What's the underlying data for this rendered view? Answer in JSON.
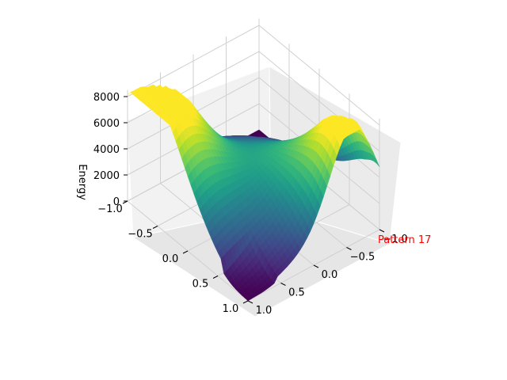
{
  "chart_data": {
    "type": "surface3d",
    "title": "",
    "xlabel": "",
    "ylabel": "",
    "zlabel": "Energy",
    "colormap": "viridis",
    "grid": true,
    "x_range": [
      -1.0,
      1.0
    ],
    "y_range": [
      -1.0,
      1.0
    ],
    "z_range": [
      0,
      8500
    ],
    "x_ticks": [
      "−1.0",
      "−0.5",
      "0.0",
      "0.5",
      "1.0"
    ],
    "y_ticks": [
      "−1.0",
      "−0.5",
      "0.0",
      "0.5",
      "1.0"
    ],
    "z_ticks": [
      "0",
      "2000",
      "4000",
      "6000",
      "8000"
    ],
    "annotation": {
      "text": "Pattern 17",
      "color": "#ff0000"
    },
    "surface_samples": {
      "description_points": [
        {
          "x": 1.0,
          "y": 1.0,
          "z": 0
        },
        {
          "x": -1.0,
          "y": -1.0,
          "z": 0
        },
        {
          "x": 0.0,
          "y": 0.0,
          "z": 2500
        },
        {
          "x": -0.8,
          "y": 1.0,
          "z": 8200
        },
        {
          "x": 1.0,
          "y": -0.6,
          "z": 8300
        },
        {
          "x": -0.2,
          "y": 0.9,
          "z": 6600
        }
      ]
    }
  }
}
